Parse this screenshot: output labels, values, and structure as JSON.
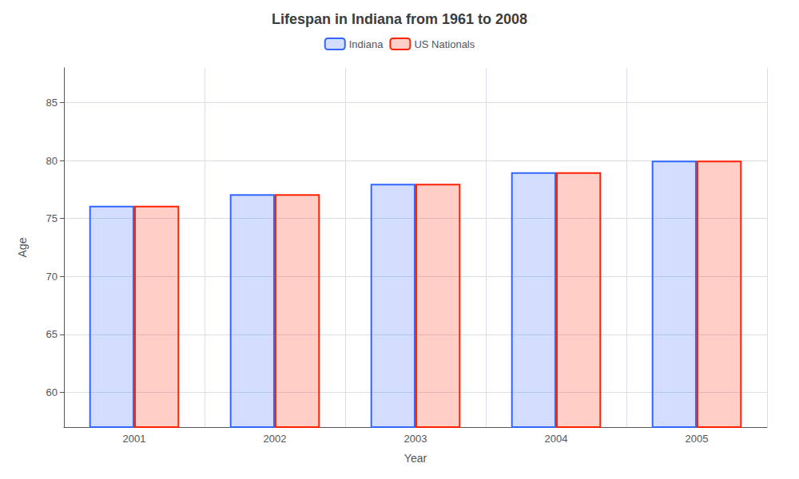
{
  "chart_data": {
    "type": "bar",
    "title": "Lifespan in Indiana from 1961 to 2008",
    "xlabel": "Year",
    "ylabel": "Age",
    "categories": [
      "2001",
      "2002",
      "2003",
      "2004",
      "2005"
    ],
    "series": [
      {
        "name": "Indiana",
        "color": "#3366ff",
        "values": [
          76.1,
          77.1,
          78.0,
          79.0,
          80.0
        ]
      },
      {
        "name": "US Nationals",
        "color": "#ff2200",
        "values": [
          76.1,
          77.1,
          78.0,
          79.0,
          80.0
        ]
      }
    ],
    "ylim": [
      57,
      88
    ],
    "yticks": [
      60,
      65,
      70,
      75,
      80,
      85
    ],
    "grid": true,
    "legend": "top"
  }
}
